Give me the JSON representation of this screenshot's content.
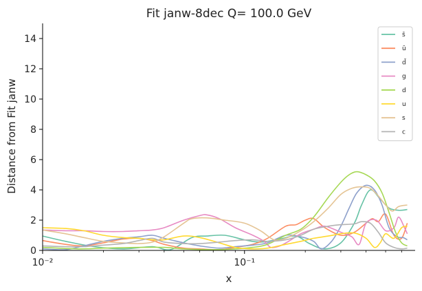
{
  "chart_data": {
    "type": "line",
    "title": "Fit janw-8dec Q= 100.0 GeV",
    "xlabel": "x",
    "ylabel": "Distance from Fit janw",
    "xscale": "log",
    "xlim": [
      0.01,
      0.7
    ],
    "ylim": [
      0,
      15
    ],
    "yticks": [
      0,
      2,
      4,
      6,
      8,
      10,
      12,
      14
    ],
    "xticks": [
      {
        "value": 0.01,
        "label": "10⁻²"
      },
      {
        "value": 0.1,
        "label": "10⁻¹"
      }
    ],
    "grid": false,
    "legend_position": "top-right",
    "series": [
      {
        "name": "s̄",
        "color": "#66c2a5",
        "points": [
          [
            0.01,
            0.95
          ],
          [
            0.013,
            0.6
          ],
          [
            0.018,
            0.25
          ],
          [
            0.025,
            0.1
          ],
          [
            0.035,
            0.25
          ],
          [
            0.043,
            0.05
          ],
          [
            0.055,
            0.85
          ],
          [
            0.065,
            0.95
          ],
          [
            0.08,
            1.0
          ],
          [
            0.1,
            0.7
          ],
          [
            0.12,
            0.55
          ],
          [
            0.15,
            0.75
          ],
          [
            0.18,
            0.95
          ],
          [
            0.21,
            0.45
          ],
          [
            0.25,
            0.1
          ],
          [
            0.3,
            0.5
          ],
          [
            0.35,
            1.8
          ],
          [
            0.38,
            3.0
          ],
          [
            0.42,
            4.0
          ],
          [
            0.47,
            3.4
          ],
          [
            0.52,
            2.8
          ],
          [
            0.58,
            2.65
          ],
          [
            0.64,
            2.7
          ]
        ]
      },
      {
        "name": "ū",
        "color": "#fc8d62",
        "points": [
          [
            0.01,
            0.65
          ],
          [
            0.013,
            0.4
          ],
          [
            0.016,
            0.3
          ],
          [
            0.02,
            0.5
          ],
          [
            0.025,
            0.75
          ],
          [
            0.03,
            0.8
          ],
          [
            0.035,
            0.65
          ],
          [
            0.04,
            0.4
          ],
          [
            0.05,
            0.15
          ],
          [
            0.06,
            0.1
          ],
          [
            0.075,
            0.05
          ],
          [
            0.09,
            0.2
          ],
          [
            0.11,
            0.4
          ],
          [
            0.13,
            0.8
          ],
          [
            0.16,
            1.6
          ],
          [
            0.18,
            1.7
          ],
          [
            0.2,
            2.0
          ],
          [
            0.22,
            2.1
          ],
          [
            0.25,
            1.5
          ],
          [
            0.3,
            1.0
          ],
          [
            0.35,
            1.2
          ],
          [
            0.4,
            1.8
          ],
          [
            0.43,
            2.1
          ],
          [
            0.46,
            1.9
          ],
          [
            0.5,
            2.4
          ],
          [
            0.55,
            1.0
          ],
          [
            0.6,
            0.8
          ],
          [
            0.64,
            1.8
          ]
        ]
      },
      {
        "name": "d̄",
        "color": "#8da0cb",
        "points": [
          [
            0.01,
            0.1
          ],
          [
            0.013,
            0.05
          ],
          [
            0.016,
            0.3
          ],
          [
            0.02,
            0.6
          ],
          [
            0.025,
            0.8
          ],
          [
            0.03,
            0.9
          ],
          [
            0.035,
            1.0
          ],
          [
            0.04,
            0.8
          ],
          [
            0.05,
            0.5
          ],
          [
            0.06,
            0.3
          ],
          [
            0.075,
            0.15
          ],
          [
            0.09,
            0.25
          ],
          [
            0.11,
            0.35
          ],
          [
            0.13,
            0.5
          ],
          [
            0.16,
            1.0
          ],
          [
            0.19,
            0.9
          ],
          [
            0.22,
            0.6
          ],
          [
            0.24,
            0.1
          ],
          [
            0.27,
            0.6
          ],
          [
            0.3,
            1.6
          ],
          [
            0.33,
            2.8
          ],
          [
            0.36,
            3.8
          ],
          [
            0.4,
            4.3
          ],
          [
            0.44,
            4.0
          ],
          [
            0.48,
            3.0
          ],
          [
            0.52,
            1.5
          ],
          [
            0.57,
            0.9
          ],
          [
            0.61,
            0.85
          ],
          [
            0.64,
            0.7
          ]
        ]
      },
      {
        "name": "g",
        "color": "#e78ac3",
        "points": [
          [
            0.01,
            1.35
          ],
          [
            0.013,
            1.3
          ],
          [
            0.016,
            1.3
          ],
          [
            0.02,
            1.25
          ],
          [
            0.025,
            1.25
          ],
          [
            0.03,
            1.3
          ],
          [
            0.035,
            1.35
          ],
          [
            0.04,
            1.5
          ],
          [
            0.05,
            2.0
          ],
          [
            0.06,
            2.3
          ],
          [
            0.065,
            2.35
          ],
          [
            0.075,
            2.1
          ],
          [
            0.09,
            1.5
          ],
          [
            0.11,
            1.0
          ],
          [
            0.125,
            0.6
          ],
          [
            0.135,
            0.2
          ],
          [
            0.15,
            0.3
          ],
          [
            0.17,
            0.7
          ],
          [
            0.19,
            1.1
          ],
          [
            0.22,
            1.4
          ],
          [
            0.25,
            1.6
          ],
          [
            0.3,
            1.2
          ],
          [
            0.34,
            0.9
          ],
          [
            0.37,
            0.4
          ],
          [
            0.4,
            1.8
          ],
          [
            0.45,
            2.0
          ],
          [
            0.5,
            1.3
          ],
          [
            0.55,
            1.5
          ],
          [
            0.58,
            2.2
          ],
          [
            0.62,
            1.5
          ],
          [
            0.64,
            1.1
          ]
        ]
      },
      {
        "name": "d",
        "color": "#a6d854",
        "points": [
          [
            0.01,
            0.2
          ],
          [
            0.015,
            0.1
          ],
          [
            0.02,
            0.15
          ],
          [
            0.03,
            0.2
          ],
          [
            0.04,
            0.2
          ],
          [
            0.05,
            0.1
          ],
          [
            0.07,
            0.05
          ],
          [
            0.09,
            0.1
          ],
          [
            0.11,
            0.2
          ],
          [
            0.13,
            0.4
          ],
          [
            0.16,
            1.0
          ],
          [
            0.19,
            1.4
          ],
          [
            0.22,
            2.2
          ],
          [
            0.26,
            3.5
          ],
          [
            0.3,
            4.5
          ],
          [
            0.33,
            5.0
          ],
          [
            0.36,
            5.2
          ],
          [
            0.4,
            5.0
          ],
          [
            0.44,
            4.6
          ],
          [
            0.48,
            3.8
          ],
          [
            0.52,
            2.5
          ],
          [
            0.56,
            1.2
          ],
          [
            0.6,
            0.5
          ],
          [
            0.64,
            0.3
          ]
        ]
      },
      {
        "name": "u",
        "color": "#ffd92f",
        "points": [
          [
            0.01,
            1.5
          ],
          [
            0.013,
            1.45
          ],
          [
            0.016,
            1.3
          ],
          [
            0.02,
            1.0
          ],
          [
            0.025,
            0.85
          ],
          [
            0.03,
            0.8
          ],
          [
            0.035,
            0.7
          ],
          [
            0.04,
            0.7
          ],
          [
            0.05,
            0.95
          ],
          [
            0.06,
            0.85
          ],
          [
            0.075,
            0.5
          ],
          [
            0.09,
            0.2
          ],
          [
            0.11,
            0.1
          ],
          [
            0.13,
            0.15
          ],
          [
            0.16,
            0.4
          ],
          [
            0.19,
            0.6
          ],
          [
            0.22,
            0.8
          ],
          [
            0.26,
            0.95
          ],
          [
            0.3,
            1.1
          ],
          [
            0.35,
            1.15
          ],
          [
            0.4,
            0.8
          ],
          [
            0.44,
            0.2
          ],
          [
            0.47,
            0.5
          ],
          [
            0.5,
            1.1
          ],
          [
            0.55,
            0.8
          ],
          [
            0.6,
            1.5
          ],
          [
            0.64,
            1.6
          ]
        ]
      },
      {
        "name": "s",
        "color": "#e5c494",
        "points": [
          [
            0.01,
            1.35
          ],
          [
            0.013,
            1.1
          ],
          [
            0.016,
            0.85
          ],
          [
            0.02,
            0.6
          ],
          [
            0.025,
            0.5
          ],
          [
            0.03,
            0.45
          ],
          [
            0.035,
            0.55
          ],
          [
            0.04,
            0.9
          ],
          [
            0.05,
            1.8
          ],
          [
            0.055,
            2.1
          ],
          [
            0.065,
            2.15
          ],
          [
            0.08,
            2.0
          ],
          [
            0.1,
            1.8
          ],
          [
            0.12,
            1.3
          ],
          [
            0.14,
            0.7
          ],
          [
            0.16,
            0.8
          ],
          [
            0.19,
            1.3
          ],
          [
            0.22,
            1.9
          ],
          [
            0.26,
            2.8
          ],
          [
            0.3,
            3.7
          ],
          [
            0.34,
            4.1
          ],
          [
            0.38,
            4.2
          ],
          [
            0.42,
            4.1
          ],
          [
            0.46,
            3.6
          ],
          [
            0.5,
            3.0
          ],
          [
            0.54,
            2.6
          ],
          [
            0.58,
            2.9
          ],
          [
            0.64,
            3.0
          ]
        ]
      },
      {
        "name": "c",
        "color": "#b3b3b3",
        "points": [
          [
            0.01,
            0.3
          ],
          [
            0.013,
            0.25
          ],
          [
            0.016,
            0.25
          ],
          [
            0.02,
            0.35
          ],
          [
            0.025,
            0.45
          ],
          [
            0.03,
            0.65
          ],
          [
            0.035,
            0.8
          ],
          [
            0.04,
            0.55
          ],
          [
            0.05,
            0.45
          ],
          [
            0.06,
            0.45
          ],
          [
            0.075,
            0.55
          ],
          [
            0.09,
            0.65
          ],
          [
            0.11,
            0.7
          ],
          [
            0.13,
            0.6
          ],
          [
            0.16,
            0.7
          ],
          [
            0.19,
            1.0
          ],
          [
            0.22,
            1.4
          ],
          [
            0.26,
            1.6
          ],
          [
            0.3,
            1.7
          ],
          [
            0.35,
            1.75
          ],
          [
            0.38,
            1.9
          ],
          [
            0.42,
            1.8
          ],
          [
            0.46,
            1.2
          ],
          [
            0.5,
            0.5
          ],
          [
            0.55,
            0.2
          ],
          [
            0.6,
            0.1
          ],
          [
            0.64,
            0.15
          ]
        ]
      }
    ]
  }
}
